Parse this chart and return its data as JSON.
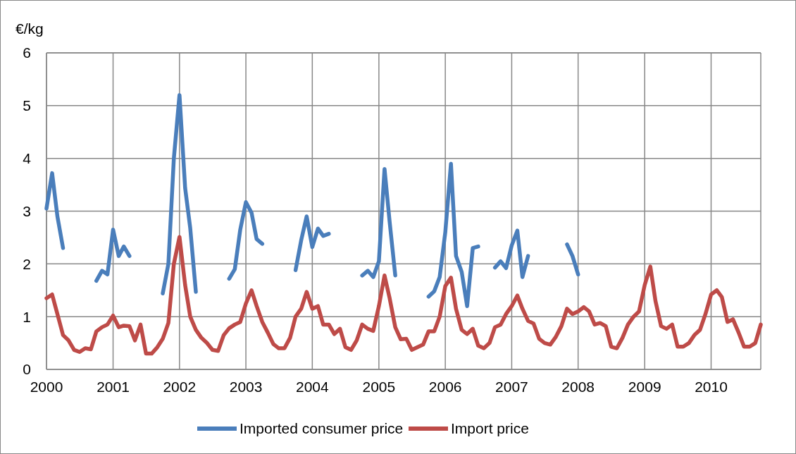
{
  "chart_data": {
    "type": "line",
    "ylabel": "€/kg",
    "x": [
      "2000-01",
      "2000-02",
      "2000-03",
      "2000-04",
      "2000-05",
      "2000-06",
      "2000-07",
      "2000-08",
      "2000-09",
      "2000-10",
      "2000-11",
      "2000-12",
      "2001-01",
      "2001-02",
      "2001-03",
      "2001-04",
      "2001-05",
      "2001-06",
      "2001-07",
      "2001-08",
      "2001-09",
      "2001-10",
      "2001-11",
      "2001-12",
      "2002-01",
      "2002-02",
      "2002-03",
      "2002-04",
      "2002-05",
      "2002-06",
      "2002-07",
      "2002-08",
      "2002-09",
      "2002-10",
      "2002-11",
      "2002-12",
      "2003-01",
      "2003-02",
      "2003-03",
      "2003-04",
      "2003-05",
      "2003-06",
      "2003-07",
      "2003-08",
      "2003-09",
      "2003-10",
      "2003-11",
      "2003-12",
      "2004-01",
      "2004-02",
      "2004-03",
      "2004-04",
      "2004-05",
      "2004-06",
      "2004-07",
      "2004-08",
      "2004-09",
      "2004-10",
      "2004-11",
      "2004-12",
      "2005-01",
      "2005-02",
      "2005-03",
      "2005-04",
      "2005-05",
      "2005-06",
      "2005-07",
      "2005-08",
      "2005-09",
      "2005-10",
      "2005-11",
      "2005-12",
      "2006-01",
      "2006-02",
      "2006-03",
      "2006-04",
      "2006-05",
      "2006-06",
      "2006-07",
      "2006-08",
      "2006-09",
      "2006-10",
      "2006-11",
      "2006-12",
      "2007-01",
      "2007-02",
      "2007-03",
      "2007-04",
      "2007-05",
      "2007-06",
      "2007-07",
      "2007-08",
      "2007-09",
      "2007-10",
      "2007-11",
      "2007-12",
      "2008-01",
      "2008-02",
      "2008-03",
      "2008-04",
      "2008-05",
      "2008-06",
      "2008-07",
      "2008-08",
      "2008-09",
      "2008-10",
      "2008-11",
      "2008-12",
      "2009-01",
      "2009-02",
      "2009-03",
      "2009-04",
      "2009-05",
      "2009-06",
      "2009-07",
      "2009-08",
      "2009-09",
      "2009-10",
      "2009-11",
      "2009-12",
      "2010-01",
      "2010-02",
      "2010-03",
      "2010-04",
      "2010-05",
      "2010-06",
      "2010-07",
      "2010-08",
      "2010-09",
      "2010-10"
    ],
    "series": [
      {
        "name": "Imported consumer price",
        "color": "#4a7ebb",
        "values": [
          3.05,
          3.72,
          2.9,
          2.3,
          null,
          null,
          null,
          null,
          null,
          1.68,
          1.87,
          1.8,
          2.65,
          2.15,
          2.33,
          2.15,
          null,
          null,
          null,
          null,
          null,
          1.44,
          2.0,
          4.0,
          5.2,
          3.44,
          2.68,
          1.47,
          null,
          null,
          null,
          null,
          null,
          1.72,
          1.9,
          2.65,
          3.17,
          2.97,
          2.47,
          2.38,
          null,
          null,
          null,
          null,
          null,
          1.88,
          2.45,
          2.9,
          2.32,
          2.67,
          2.53,
          2.57,
          null,
          null,
          null,
          null,
          null,
          1.78,
          1.87,
          1.75,
          2.05,
          3.8,
          2.8,
          1.78,
          null,
          null,
          null,
          null,
          null,
          1.38,
          1.48,
          1.75,
          2.6,
          3.9,
          2.15,
          1.85,
          1.2,
          2.3,
          2.33,
          null,
          null,
          1.93,
          2.05,
          1.92,
          2.35,
          2.63,
          1.75,
          2.15,
          null,
          null,
          null,
          null,
          null,
          null,
          2.37,
          2.15,
          1.8,
          null,
          null,
          null,
          null,
          null,
          null,
          null,
          null,
          null,
          null,
          null,
          null,
          null,
          null,
          null,
          null,
          null,
          null,
          null,
          null,
          null,
          null,
          null,
          null,
          null,
          null,
          null,
          null,
          null,
          null,
          null,
          null,
          null
        ]
      },
      {
        "name": "Import price",
        "color": "#be4b48",
        "values": [
          1.35,
          1.42,
          1.05,
          0.65,
          0.55,
          0.37,
          0.33,
          0.4,
          0.38,
          0.72,
          0.8,
          0.85,
          1.02,
          0.8,
          0.83,
          0.82,
          0.55,
          0.85,
          0.3,
          0.3,
          0.42,
          0.58,
          0.88,
          2.0,
          2.51,
          1.6,
          1.0,
          0.75,
          0.6,
          0.5,
          0.37,
          0.35,
          0.65,
          0.78,
          0.85,
          0.9,
          1.25,
          1.5,
          1.2,
          0.9,
          0.7,
          0.48,
          0.4,
          0.4,
          0.6,
          1.0,
          1.15,
          1.47,
          1.15,
          1.2,
          0.85,
          0.85,
          0.67,
          0.77,
          0.42,
          0.37,
          0.55,
          0.85,
          0.77,
          0.73,
          1.2,
          1.78,
          1.35,
          0.8,
          0.57,
          0.58,
          0.37,
          0.42,
          0.47,
          0.72,
          0.72,
          1.0,
          1.58,
          1.74,
          1.15,
          0.75,
          0.67,
          0.77,
          0.45,
          0.4,
          0.5,
          0.8,
          0.85,
          1.05,
          1.2,
          1.4,
          1.15,
          0.92,
          0.87,
          0.58,
          0.5,
          0.47,
          0.62,
          0.82,
          1.15,
          1.05,
          1.1,
          1.18,
          1.1,
          0.85,
          0.88,
          0.82,
          0.43,
          0.4,
          0.6,
          0.85,
          1.0,
          1.1,
          1.6,
          1.95,
          1.3,
          0.82,
          0.77,
          0.85,
          0.43,
          0.43,
          0.5,
          0.65,
          0.75,
          1.05,
          1.42,
          1.5,
          1.37,
          0.9,
          0.95,
          0.7,
          0.43,
          0.43,
          0.5,
          0.85
        ]
      }
    ],
    "xlim": [
      "2000-01",
      "2010-10"
    ],
    "xticks": [
      {
        "value": "2000-01",
        "label": "2000"
      },
      {
        "value": "2001-01",
        "label": "2001"
      },
      {
        "value": "2002-01",
        "label": "2002"
      },
      {
        "value": "2003-01",
        "label": "2003"
      },
      {
        "value": "2004-01",
        "label": "2004"
      },
      {
        "value": "2005-01",
        "label": "2005"
      },
      {
        "value": "2006-01",
        "label": "2006"
      },
      {
        "value": "2007-01",
        "label": "2007"
      },
      {
        "value": "2008-01",
        "label": "2008"
      },
      {
        "value": "2009-01",
        "label": "2009"
      },
      {
        "value": "2010-01",
        "label": "2010"
      }
    ],
    "ylim": [
      0,
      6
    ],
    "yticks": [
      0,
      1,
      2,
      3,
      4,
      5,
      6
    ],
    "grid": true,
    "legend": "bottom",
    "line_style": "solid"
  }
}
